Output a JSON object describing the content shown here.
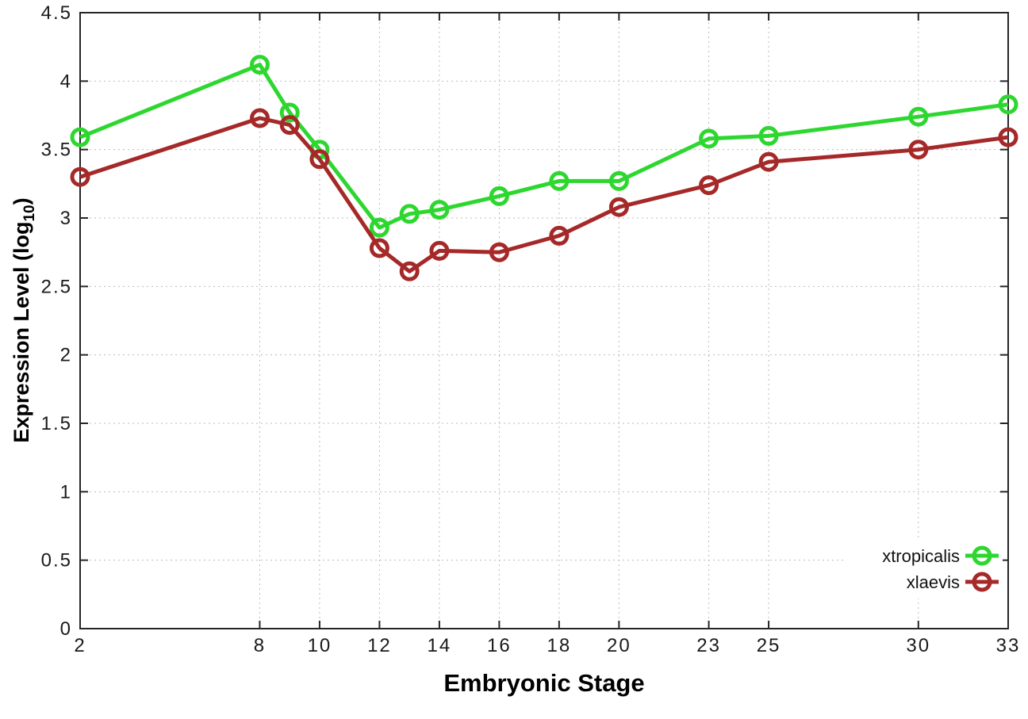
{
  "figure": {
    "background": "#ffffff",
    "axis_color": "#262626",
    "grid_color": "#bbbbbb",
    "text_color": "#1a1a1a"
  },
  "chart_data": {
    "type": "line",
    "title": "",
    "xlabel": "Embryonic Stage",
    "ylabel": "Expression Level (log10)",
    "ylabel_main": "Expression Level (log",
    "ylabel_sub": "10",
    "ylabel_end": ")",
    "x": [
      2,
      8,
      9,
      10,
      12,
      13,
      14,
      16,
      18,
      20,
      23,
      25,
      30,
      33
    ],
    "xticks": [
      2,
      8,
      10,
      12,
      14,
      16,
      18,
      20,
      23,
      25,
      30,
      33
    ],
    "yticks": [
      0,
      0.5,
      1,
      1.5,
      2,
      2.5,
      3,
      3.5,
      4,
      4.5
    ],
    "ytick_labels": [
      "0",
      "0.5",
      "1",
      "1.5",
      "2",
      "2.5",
      "3",
      "3.5",
      "4",
      "4.5"
    ],
    "xlim": [
      2,
      33
    ],
    "ylim": [
      0,
      4.5
    ],
    "grid": "dotted",
    "marker": "open-circle",
    "legend": {
      "position": "inside-bottom-right",
      "entries": [
        "xtropicalis",
        "xlaevis"
      ]
    },
    "series": [
      {
        "name": "xtropicalis",
        "color": "#2DD72F",
        "values": [
          3.59,
          4.12,
          3.77,
          3.5,
          2.93,
          3.03,
          3.06,
          3.16,
          3.27,
          3.27,
          3.58,
          3.6,
          3.74,
          3.83
        ]
      },
      {
        "name": "xlaevis",
        "color": "#A62929",
        "values": [
          3.3,
          3.73,
          3.68,
          3.43,
          2.78,
          2.61,
          2.76,
          2.75,
          2.87,
          3.08,
          3.24,
          3.41,
          3.5,
          3.59
        ]
      }
    ]
  }
}
